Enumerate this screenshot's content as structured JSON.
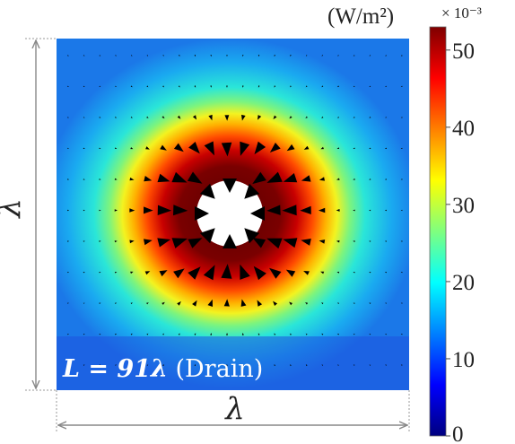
{
  "colorbar": {
    "unit": "(W/m²)",
    "multiplier": "× 10⁻³",
    "ticks": [
      "50",
      "40",
      "30",
      "20",
      "10",
      "0"
    ],
    "tick_values": [
      50,
      40,
      30,
      20,
      10,
      0
    ],
    "range": [
      0,
      53
    ],
    "colormap": "jet"
  },
  "dimension": {
    "width_label": "λ",
    "height_label": "λ"
  },
  "case_label": {
    "bold_part": "L = 91λ",
    "normal_part": " (Drain)"
  },
  "colors": {
    "hole": "#ffffff",
    "arrows": "#000000",
    "label_background": "#1e3fd8"
  }
}
